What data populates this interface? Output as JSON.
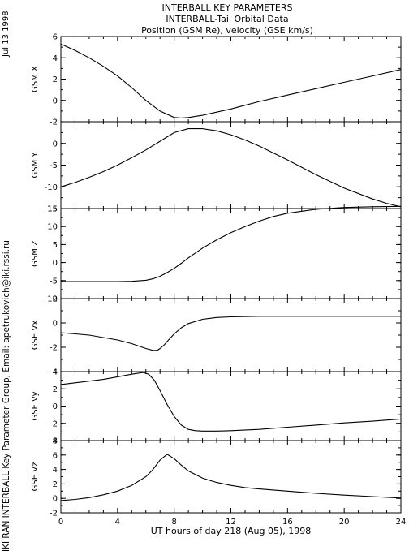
{
  "header": {
    "title_1": "INTERBALL KEY PARAMETERS",
    "title_2": "INTERBALL-Tail Orbital Data",
    "title_3": "Position (GSM Re), velocity (GSE km/s)"
  },
  "side_labels": {
    "date": "Jul 13 1998",
    "credit": "IKI RAN INTERBALL Key Parameter Group, Email: apetrukovich@iki.rssi.ru"
  },
  "chart_data": [
    {
      "type": "line",
      "ylabel": "GSM X",
      "xlim": [
        0,
        24
      ],
      "ylim": [
        -2,
        6
      ],
      "yticks": [
        -2,
        0,
        2,
        4,
        6
      ],
      "x": [
        0,
        1,
        2,
        3,
        4,
        5,
        6,
        7,
        8,
        8.5,
        9,
        10,
        11,
        12,
        13,
        14,
        16,
        18,
        20,
        22,
        24
      ],
      "y": [
        5.3,
        4.7,
        4.0,
        3.2,
        2.3,
        1.2,
        0.0,
        -1.0,
        -1.6,
        -1.65,
        -1.6,
        -1.4,
        -1.1,
        -0.8,
        -0.45,
        -0.1,
        0.5,
        1.1,
        1.7,
        2.3,
        2.9
      ]
    },
    {
      "type": "line",
      "ylabel": "GSM Y",
      "xlim": [
        0,
        24
      ],
      "ylim": [
        -15,
        5
      ],
      "yticks": [
        -15,
        -10,
        -5,
        0
      ],
      "x": [
        0,
        1,
        2,
        3,
        4,
        5,
        6,
        7,
        8,
        9,
        10,
        11,
        12,
        13,
        14,
        16,
        18,
        20,
        22,
        23,
        24
      ],
      "y": [
        -10,
        -9.0,
        -7.8,
        -6.5,
        -5.0,
        -3.3,
        -1.5,
        0.5,
        2.5,
        3.4,
        3.4,
        2.9,
        2.0,
        0.8,
        -0.6,
        -3.8,
        -7.2,
        -10.3,
        -12.8,
        -13.8,
        -14.6
      ]
    },
    {
      "type": "line",
      "ylabel": "GSM Z",
      "xlim": [
        0,
        24
      ],
      "ylim": [
        -10,
        15
      ],
      "yticks": [
        -10,
        -5,
        0,
        5,
        10,
        15
      ],
      "x": [
        0,
        2,
        4,
        5,
        6,
        6.5,
        7,
        7.5,
        8,
        8.5,
        9,
        10,
        11,
        12,
        13,
        14,
        15,
        16,
        18,
        20,
        22,
        24
      ],
      "y": [
        -5.3,
        -5.3,
        -5.3,
        -5.2,
        -4.9,
        -4.5,
        -3.8,
        -2.8,
        -1.6,
        -0.2,
        1.3,
        4.0,
        6.3,
        8.3,
        10.0,
        11.5,
        12.8,
        13.7,
        14.8,
        15.3,
        15.5,
        15.6
      ]
    },
    {
      "type": "line",
      "ylabel": "GSE Vx",
      "xlim": [
        0,
        24
      ],
      "ylim": [
        -4,
        2
      ],
      "yticks": [
        -4,
        -2,
        0,
        2
      ],
      "x": [
        0,
        1,
        2,
        3,
        4,
        5,
        6,
        6.5,
        6.8,
        7,
        7.3,
        7.6,
        8,
        8.5,
        9,
        10,
        11,
        12,
        14,
        16,
        18,
        20,
        22,
        24
      ],
      "y": [
        -0.8,
        -0.9,
        -1.0,
        -1.2,
        -1.4,
        -1.7,
        -2.1,
        -2.25,
        -2.25,
        -2.1,
        -1.8,
        -1.4,
        -0.9,
        -0.4,
        -0.05,
        0.3,
        0.45,
        0.5,
        0.55,
        0.55,
        0.55,
        0.55,
        0.55,
        0.55
      ]
    },
    {
      "type": "line",
      "ylabel": "GSE Vy",
      "xlim": [
        0,
        24
      ],
      "ylim": [
        -4,
        4
      ],
      "yticks": [
        -4,
        -2,
        0,
        2,
        4
      ],
      "x": [
        0,
        1,
        2,
        3,
        4,
        5,
        5.8,
        6.2,
        6.6,
        7,
        7.5,
        8,
        8.5,
        9,
        9.5,
        10,
        11,
        12,
        14,
        16,
        18,
        20,
        22,
        24
      ],
      "y": [
        2.5,
        2.7,
        2.9,
        3.1,
        3.4,
        3.7,
        3.9,
        3.7,
        3.0,
        1.8,
        0.2,
        -1.2,
        -2.2,
        -2.7,
        -2.85,
        -2.9,
        -2.9,
        -2.85,
        -2.7,
        -2.45,
        -2.2,
        -1.95,
        -1.75,
        -1.5
      ]
    },
    {
      "type": "line",
      "ylabel": "GSE Vz",
      "xlim": [
        0,
        24
      ],
      "ylim": [
        -2,
        8
      ],
      "yticks": [
        -2,
        0,
        2,
        4,
        6,
        8
      ],
      "xlabel": "UT hours of day 218 (Aug 05), 1998",
      "xticks": [
        0,
        4,
        8,
        12,
        16,
        20,
        24
      ],
      "x": [
        0,
        1,
        2,
        3,
        4,
        5,
        6,
        6.5,
        7,
        7.5,
        8,
        8.5,
        9,
        10,
        11,
        12,
        13,
        14,
        16,
        18,
        20,
        22,
        24
      ],
      "y": [
        -0.3,
        -0.15,
        0.1,
        0.5,
        1.0,
        1.8,
        3.0,
        4.0,
        5.3,
        6.1,
        5.5,
        4.6,
        3.8,
        2.8,
        2.2,
        1.8,
        1.5,
        1.3,
        1.0,
        0.7,
        0.45,
        0.25,
        0.05
      ]
    }
  ]
}
